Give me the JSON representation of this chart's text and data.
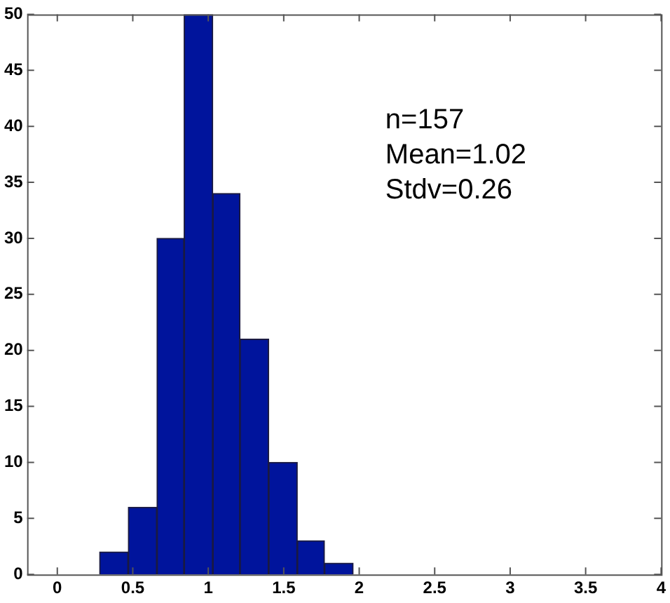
{
  "chart_data": {
    "type": "histogram",
    "bins": [
      0.28,
      0.47,
      0.66,
      0.84,
      1.03,
      1.21,
      1.4,
      1.59,
      1.77,
      1.96
    ],
    "values": [
      2,
      6,
      30,
      50,
      34,
      21,
      10,
      3,
      1
    ],
    "color": "#00149c",
    "xlim": [
      -0.2,
      4
    ],
    "xticks": [
      0,
      0.5,
      1,
      1.5,
      2,
      2.5,
      3,
      3.5,
      4
    ],
    "ylim": [
      0,
      50
    ],
    "yticks": [
      0,
      5,
      10,
      15,
      20,
      25,
      30,
      35,
      40,
      45,
      50
    ],
    "grid": false,
    "legend": false,
    "annotations": [
      "n=157",
      "Mean=1.02",
      "Stdv=0.26"
    ]
  }
}
